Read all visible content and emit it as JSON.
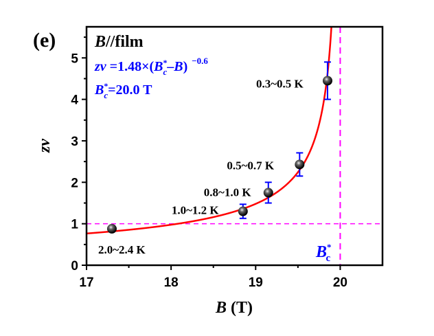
{
  "chart_data": {
    "type": "scatter",
    "panel_label": "(e)",
    "xlabel": "B (T)",
    "ylabel": "zν",
    "xlim": [
      17,
      20.5
    ],
    "ylim": [
      0,
      5.75
    ],
    "xticks": [
      "17",
      "18",
      "19",
      "20"
    ],
    "yticks": [
      "0",
      "1",
      "2",
      "3",
      "4",
      "5"
    ],
    "grid": false,
    "annotations": {
      "condition": "B//film",
      "fit_formula": "zν=1.48×(B*c−B) −0.6",
      "critical_field": "B*c=20.0 T",
      "bc_line_label": "B*c"
    },
    "colors": {
      "points": "#000000",
      "error_bars": "#0000ff",
      "fit": "#ff0000",
      "reference_lines": "#ff00ff",
      "annotation": "#0000ff"
    },
    "points": [
      {
        "label": "2.0~2.4 K",
        "x": 17.3,
        "y": 0.88,
        "err": 0
      },
      {
        "label": "1.0~1.2 K",
        "x": 18.85,
        "y": 1.3,
        "err": 0.17
      },
      {
        "label": "0.8~1.0 K",
        "x": 19.15,
        "y": 1.75,
        "err": 0.25
      },
      {
        "label": "0.5~0.7 K",
        "x": 19.52,
        "y": 2.43,
        "err": 0.28
      },
      {
        "label": "0.3~0.5 K",
        "x": 19.85,
        "y": 4.45,
        "err": 0.45
      }
    ],
    "fit": {
      "A": 1.48,
      "Bc": 20.0,
      "exponent": -0.6
    },
    "reference_lines": {
      "y": 1,
      "x": 20.0
    }
  }
}
